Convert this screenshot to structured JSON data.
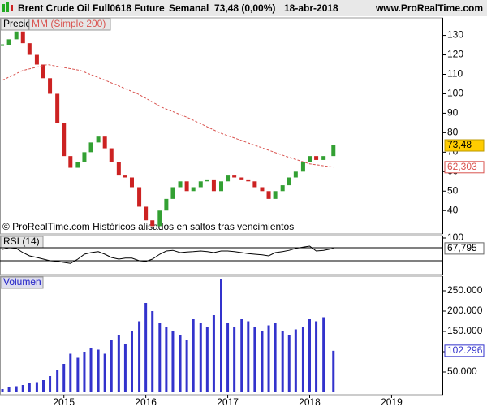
{
  "header": {
    "title": "Brent Crude Oil Full0618 Future",
    "period": "Semanal",
    "quote": "73,48 (0,00%)",
    "date": "18-abr-2018",
    "site": "www.ProRealTime.com"
  },
  "chart_data": [
    {
      "type": "candlestick",
      "label": "Precio",
      "note": "© ProRealTime.com Históricos alisados en saltos tras vencimientos",
      "x": [
        2014.25,
        2014.33,
        2014.42,
        2014.5,
        2014.58,
        2014.67,
        2014.75,
        2014.83,
        2014.92,
        2015.0,
        2015.08,
        2015.17,
        2015.25,
        2015.33,
        2015.42,
        2015.5,
        2015.58,
        2015.67,
        2015.75,
        2015.83,
        2015.92,
        2016.0,
        2016.08,
        2016.17,
        2016.25,
        2016.33,
        2016.42,
        2016.5,
        2016.58,
        2016.67,
        2016.75,
        2016.83,
        2016.92,
        2017.0,
        2017.08,
        2017.17,
        2017.25,
        2017.33,
        2017.42,
        2017.5,
        2017.58,
        2017.67,
        2017.75,
        2017.83,
        2017.92,
        2018.0,
        2018.08,
        2018.17,
        2018.29
      ],
      "values": [
        125,
        128,
        132,
        126,
        120,
        115,
        108,
        100,
        85,
        68,
        62,
        65,
        70,
        75,
        78,
        72,
        65,
        58,
        57,
        52,
        42,
        35,
        32,
        40,
        46,
        52,
        55,
        50,
        52,
        55,
        56,
        50,
        55,
        58,
        57,
        56,
        55,
        52,
        50,
        46,
        50,
        53,
        57,
        60,
        65,
        68,
        66,
        68,
        73.48
      ],
      "value_labels": {
        "48": "73,48"
      },
      "up_color": "#33a033",
      "down_color": "#cc2222",
      "series": [
        {
          "name": "MM (Simple 200)",
          "color": "#d9534f",
          "x": [
            2014.25,
            2014.5,
            2014.8,
            2015.2,
            2015.5,
            2015.9,
            2016.2,
            2016.5,
            2016.9,
            2017.3,
            2017.7,
            2018.0,
            2018.29
          ],
          "values": [
            107,
            112,
            115,
            112,
            107,
            100,
            93,
            88,
            80,
            74,
            68,
            64,
            62.303
          ],
          "value_labels": {
            "12": "62,303"
          }
        }
      ],
      "ylim": [
        28,
        139
      ],
      "yticks": [
        40,
        50,
        60,
        70,
        80,
        90,
        100,
        110,
        120,
        130
      ]
    },
    {
      "type": "line",
      "label": "RSI (14)",
      "color": "#000000",
      "x": [
        2014.25,
        2014.33,
        2014.42,
        2014.5,
        2014.58,
        2014.67,
        2014.75,
        2014.83,
        2014.92,
        2015.0,
        2015.08,
        2015.17,
        2015.25,
        2015.33,
        2015.42,
        2015.5,
        2015.58,
        2015.67,
        2015.75,
        2015.83,
        2015.92,
        2016.0,
        2016.08,
        2016.17,
        2016.25,
        2016.33,
        2016.42,
        2016.5,
        2016.58,
        2016.67,
        2016.75,
        2016.83,
        2016.92,
        2017.0,
        2017.08,
        2017.17,
        2017.25,
        2017.33,
        2017.42,
        2017.5,
        2017.58,
        2017.67,
        2017.75,
        2017.83,
        2017.92,
        2018.0,
        2018.08,
        2018.17,
        2018.29
      ],
      "values": [
        65,
        70,
        68,
        55,
        45,
        40,
        35,
        30,
        28,
        25,
        22,
        35,
        50,
        55,
        58,
        50,
        40,
        35,
        38,
        38,
        30,
        28,
        35,
        50,
        60,
        62,
        55,
        57,
        58,
        60,
        58,
        55,
        60,
        60,
        58,
        55,
        52,
        50,
        48,
        45,
        55,
        58,
        62,
        68,
        72,
        75,
        60,
        62,
        67.795
      ],
      "value_labels": {
        "48": "67,795"
      },
      "levels": [
        70,
        30
      ],
      "ylim": [
        0,
        100
      ],
      "yticks": [
        100
      ]
    },
    {
      "type": "bar",
      "label": "Volumen",
      "color": "#3333cc",
      "x": [
        2014.25,
        2014.33,
        2014.42,
        2014.5,
        2014.58,
        2014.67,
        2014.75,
        2014.83,
        2014.92,
        2015.0,
        2015.08,
        2015.17,
        2015.25,
        2015.33,
        2015.42,
        2015.5,
        2015.58,
        2015.67,
        2015.75,
        2015.83,
        2015.92,
        2016.0,
        2016.08,
        2016.17,
        2016.25,
        2016.33,
        2016.42,
        2016.5,
        2016.58,
        2016.67,
        2016.75,
        2016.83,
        2016.92,
        2017.0,
        2017.08,
        2017.17,
        2017.25,
        2017.33,
        2017.42,
        2017.5,
        2017.58,
        2017.67,
        2017.75,
        2017.83,
        2017.92,
        2018.0,
        2018.08,
        2018.17,
        2018.29
      ],
      "values": [
        8000,
        12000,
        15000,
        18000,
        22000,
        25000,
        30000,
        40000,
        55000,
        70000,
        95000,
        85000,
        100000,
        110000,
        105000,
        95000,
        130000,
        140000,
        120000,
        150000,
        175000,
        220000,
        200000,
        170000,
        160000,
        150000,
        140000,
        130000,
        180000,
        170000,
        160000,
        190000,
        280000,
        170000,
        160000,
        180000,
        175000,
        160000,
        150000,
        165000,
        170000,
        150000,
        140000,
        155000,
        160000,
        180000,
        175000,
        185000,
        102296
      ],
      "value_labels": {
        "48": "102.296"
      },
      "ylim": [
        0,
        290000
      ],
      "yticks": [
        {
          "value": 50000,
          "label": "50.000"
        },
        {
          "value": 100000,
          "label": "100.000"
        },
        {
          "value": 150000,
          "label": "150.000"
        },
        {
          "value": 200000,
          "label": "200.000"
        },
        {
          "value": 250000,
          "label": "250.000"
        }
      ],
      "xlim": [
        2014.22,
        2019.62
      ],
      "xticks": [
        2015,
        2016,
        2017,
        2018,
        2019
      ]
    }
  ]
}
